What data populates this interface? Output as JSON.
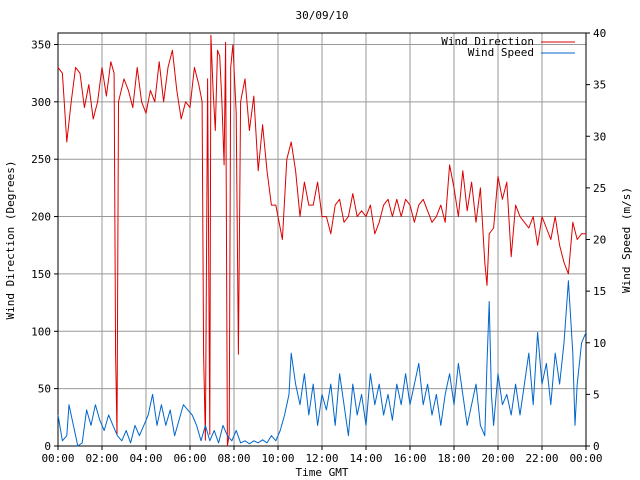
{
  "chart_data": {
    "type": "line",
    "title": "30/09/10",
    "xlabel": "Time GMT",
    "ylabel_left": "Wind Direction (Degrees)",
    "ylabel_right": "Wind Speed (m/s)",
    "x_ticks": [
      "00:00",
      "02:00",
      "04:00",
      "06:00",
      "08:00",
      "10:00",
      "12:00",
      "14:00",
      "16:00",
      "18:00",
      "20:00",
      "22:00",
      "00:00"
    ],
    "x_range_hours": [
      0,
      24
    ],
    "y_left_range": [
      0,
      360
    ],
    "y_left_ticks": [
      0,
      50,
      100,
      150,
      200,
      250,
      300,
      350
    ],
    "y_right_range": [
      0,
      40
    ],
    "y_right_ticks": [
      0,
      5,
      10,
      15,
      20,
      25,
      30,
      35,
      40
    ],
    "grid": true,
    "legend_position": "top-right",
    "series": [
      {
        "name": "Wind Direction",
        "axis": "left",
        "color": "#dd0000",
        "points": [
          [
            0.0,
            330
          ],
          [
            0.2,
            325
          ],
          [
            0.4,
            265
          ],
          [
            0.6,
            300
          ],
          [
            0.8,
            330
          ],
          [
            1.0,
            325
          ],
          [
            1.2,
            295
          ],
          [
            1.4,
            315
          ],
          [
            1.6,
            285
          ],
          [
            1.8,
            300
          ],
          [
            2.0,
            330
          ],
          [
            2.2,
            305
          ],
          [
            2.4,
            335
          ],
          [
            2.55,
            325
          ],
          [
            2.62,
            80
          ],
          [
            2.68,
            10
          ],
          [
            2.75,
            300
          ],
          [
            3.0,
            320
          ],
          [
            3.2,
            310
          ],
          [
            3.4,
            295
          ],
          [
            3.6,
            330
          ],
          [
            3.8,
            300
          ],
          [
            4.0,
            290
          ],
          [
            4.2,
            310
          ],
          [
            4.4,
            300
          ],
          [
            4.6,
            335
          ],
          [
            4.8,
            300
          ],
          [
            5.0,
            330
          ],
          [
            5.2,
            345
          ],
          [
            5.4,
            310
          ],
          [
            5.6,
            285
          ],
          [
            5.8,
            300
          ],
          [
            6.0,
            295
          ],
          [
            6.2,
            330
          ],
          [
            6.4,
            315
          ],
          [
            6.55,
            300
          ],
          [
            6.62,
            80
          ],
          [
            6.7,
            5
          ],
          [
            6.8,
            320
          ],
          [
            6.9,
            10
          ],
          [
            6.95,
            358
          ],
          [
            7.05,
            310
          ],
          [
            7.15,
            275
          ],
          [
            7.25,
            345
          ],
          [
            7.35,
            340
          ],
          [
            7.45,
            300
          ],
          [
            7.55,
            245
          ],
          [
            7.62,
            352
          ],
          [
            7.7,
            0
          ],
          [
            7.78,
            10
          ],
          [
            7.85,
            330
          ],
          [
            7.95,
            350
          ],
          [
            8.1,
            290
          ],
          [
            8.2,
            80
          ],
          [
            8.3,
            300
          ],
          [
            8.5,
            320
          ],
          [
            8.7,
            275
          ],
          [
            8.9,
            305
          ],
          [
            9.1,
            240
          ],
          [
            9.3,
            280
          ],
          [
            9.5,
            240
          ],
          [
            9.7,
            210
          ],
          [
            9.9,
            210
          ],
          [
            10.0,
            200
          ],
          [
            10.2,
            180
          ],
          [
            10.4,
            250
          ],
          [
            10.6,
            265
          ],
          [
            10.8,
            240
          ],
          [
            11.0,
            200
          ],
          [
            11.2,
            230
          ],
          [
            11.4,
            210
          ],
          [
            11.6,
            210
          ],
          [
            11.8,
            230
          ],
          [
            12.0,
            200
          ],
          [
            12.2,
            200
          ],
          [
            12.4,
            185
          ],
          [
            12.6,
            210
          ],
          [
            12.8,
            215
          ],
          [
            13.0,
            195
          ],
          [
            13.2,
            200
          ],
          [
            13.4,
            220
          ],
          [
            13.6,
            200
          ],
          [
            13.8,
            205
          ],
          [
            14.0,
            200
          ],
          [
            14.2,
            210
          ],
          [
            14.4,
            185
          ],
          [
            14.6,
            195
          ],
          [
            14.8,
            210
          ],
          [
            15.0,
            215
          ],
          [
            15.2,
            200
          ],
          [
            15.4,
            215
          ],
          [
            15.6,
            200
          ],
          [
            15.8,
            215
          ],
          [
            16.0,
            210
          ],
          [
            16.2,
            195
          ],
          [
            16.4,
            210
          ],
          [
            16.6,
            215
          ],
          [
            16.8,
            205
          ],
          [
            17.0,
            195
          ],
          [
            17.2,
            200
          ],
          [
            17.4,
            210
          ],
          [
            17.6,
            195
          ],
          [
            17.8,
            245
          ],
          [
            18.0,
            225
          ],
          [
            18.2,
            200
          ],
          [
            18.4,
            240
          ],
          [
            18.6,
            205
          ],
          [
            18.8,
            230
          ],
          [
            19.0,
            195
          ],
          [
            19.2,
            225
          ],
          [
            19.4,
            160
          ],
          [
            19.5,
            140
          ],
          [
            19.6,
            185
          ],
          [
            19.8,
            190
          ],
          [
            20.0,
            235
          ],
          [
            20.2,
            215
          ],
          [
            20.4,
            230
          ],
          [
            20.6,
            165
          ],
          [
            20.8,
            210
          ],
          [
            21.0,
            200
          ],
          [
            21.2,
            195
          ],
          [
            21.4,
            190
          ],
          [
            21.6,
            200
          ],
          [
            21.8,
            175
          ],
          [
            22.0,
            200
          ],
          [
            22.2,
            190
          ],
          [
            22.4,
            180
          ],
          [
            22.6,
            200
          ],
          [
            22.8,
            175
          ],
          [
            23.0,
            160
          ],
          [
            23.2,
            150
          ],
          [
            23.4,
            195
          ],
          [
            23.6,
            180
          ],
          [
            23.8,
            185
          ],
          [
            24.0,
            185
          ]
        ]
      },
      {
        "name": "Wind Speed",
        "axis": "right",
        "color": "#0066cc",
        "points": [
          [
            0.0,
            3
          ],
          [
            0.2,
            0.5
          ],
          [
            0.4,
            1
          ],
          [
            0.5,
            4
          ],
          [
            0.7,
            2
          ],
          [
            0.9,
            0
          ],
          [
            1.1,
            0.3
          ],
          [
            1.3,
            3.5
          ],
          [
            1.5,
            2
          ],
          [
            1.7,
            4
          ],
          [
            1.9,
            2.5
          ],
          [
            2.1,
            1.5
          ],
          [
            2.3,
            3
          ],
          [
            2.5,
            2
          ],
          [
            2.7,
            1
          ],
          [
            2.9,
            0.5
          ],
          [
            3.1,
            1.5
          ],
          [
            3.3,
            0.3
          ],
          [
            3.5,
            2
          ],
          [
            3.7,
            1
          ],
          [
            3.9,
            2
          ],
          [
            4.1,
            3
          ],
          [
            4.3,
            5
          ],
          [
            4.5,
            2
          ],
          [
            4.7,
            4
          ],
          [
            4.9,
            2
          ],
          [
            5.1,
            3.5
          ],
          [
            5.3,
            1
          ],
          [
            5.5,
            2.5
          ],
          [
            5.7,
            4
          ],
          [
            5.9,
            3.5
          ],
          [
            6.1,
            3
          ],
          [
            6.3,
            2
          ],
          [
            6.5,
            0.5
          ],
          [
            6.7,
            2
          ],
          [
            6.9,
            0.5
          ],
          [
            7.1,
            1.5
          ],
          [
            7.3,
            0.3
          ],
          [
            7.5,
            2
          ],
          [
            7.7,
            1
          ],
          [
            7.9,
            0.5
          ],
          [
            8.1,
            1.5
          ],
          [
            8.3,
            0.3
          ],
          [
            8.5,
            0.5
          ],
          [
            8.7,
            0.2
          ],
          [
            8.9,
            0.5
          ],
          [
            9.1,
            0.3
          ],
          [
            9.3,
            0.6
          ],
          [
            9.5,
            0.3
          ],
          [
            9.7,
            1
          ],
          [
            9.9,
            0.5
          ],
          [
            10.1,
            1.5
          ],
          [
            10.3,
            3
          ],
          [
            10.5,
            5
          ],
          [
            10.6,
            9
          ],
          [
            10.8,
            6
          ],
          [
            11.0,
            4
          ],
          [
            11.2,
            7
          ],
          [
            11.4,
            3
          ],
          [
            11.6,
            6
          ],
          [
            11.8,
            2
          ],
          [
            12.0,
            5
          ],
          [
            12.2,
            3.5
          ],
          [
            12.4,
            6
          ],
          [
            12.6,
            2
          ],
          [
            12.8,
            7
          ],
          [
            13.0,
            4
          ],
          [
            13.2,
            1
          ],
          [
            13.4,
            6
          ],
          [
            13.6,
            3
          ],
          [
            13.8,
            5
          ],
          [
            14.0,
            2
          ],
          [
            14.2,
            7
          ],
          [
            14.4,
            4
          ],
          [
            14.6,
            6
          ],
          [
            14.8,
            3
          ],
          [
            15.0,
            5
          ],
          [
            15.2,
            2.5
          ],
          [
            15.4,
            6
          ],
          [
            15.6,
            4
          ],
          [
            15.8,
            7
          ],
          [
            16.0,
            4
          ],
          [
            16.2,
            6
          ],
          [
            16.4,
            8
          ],
          [
            16.6,
            4
          ],
          [
            16.8,
            6
          ],
          [
            17.0,
            3
          ],
          [
            17.2,
            5
          ],
          [
            17.4,
            2
          ],
          [
            17.6,
            5
          ],
          [
            17.8,
            7
          ],
          [
            18.0,
            4
          ],
          [
            18.2,
            8
          ],
          [
            18.4,
            5
          ],
          [
            18.6,
            2
          ],
          [
            18.8,
            4
          ],
          [
            19.0,
            6
          ],
          [
            19.2,
            2
          ],
          [
            19.4,
            1
          ],
          [
            19.5,
            8
          ],
          [
            19.6,
            14
          ],
          [
            19.7,
            5
          ],
          [
            19.8,
            2
          ],
          [
            20.0,
            7
          ],
          [
            20.2,
            4
          ],
          [
            20.4,
            5
          ],
          [
            20.6,
            3
          ],
          [
            20.8,
            6
          ],
          [
            21.0,
            3
          ],
          [
            21.2,
            6
          ],
          [
            21.4,
            9
          ],
          [
            21.6,
            4
          ],
          [
            21.8,
            11
          ],
          [
            22.0,
            6
          ],
          [
            22.2,
            8
          ],
          [
            22.4,
            4
          ],
          [
            22.6,
            9
          ],
          [
            22.8,
            6
          ],
          [
            23.0,
            10
          ],
          [
            23.2,
            16
          ],
          [
            23.4,
            9
          ],
          [
            23.5,
            2
          ],
          [
            23.6,
            6
          ],
          [
            23.8,
            10
          ],
          [
            24.0,
            11
          ]
        ]
      }
    ]
  }
}
